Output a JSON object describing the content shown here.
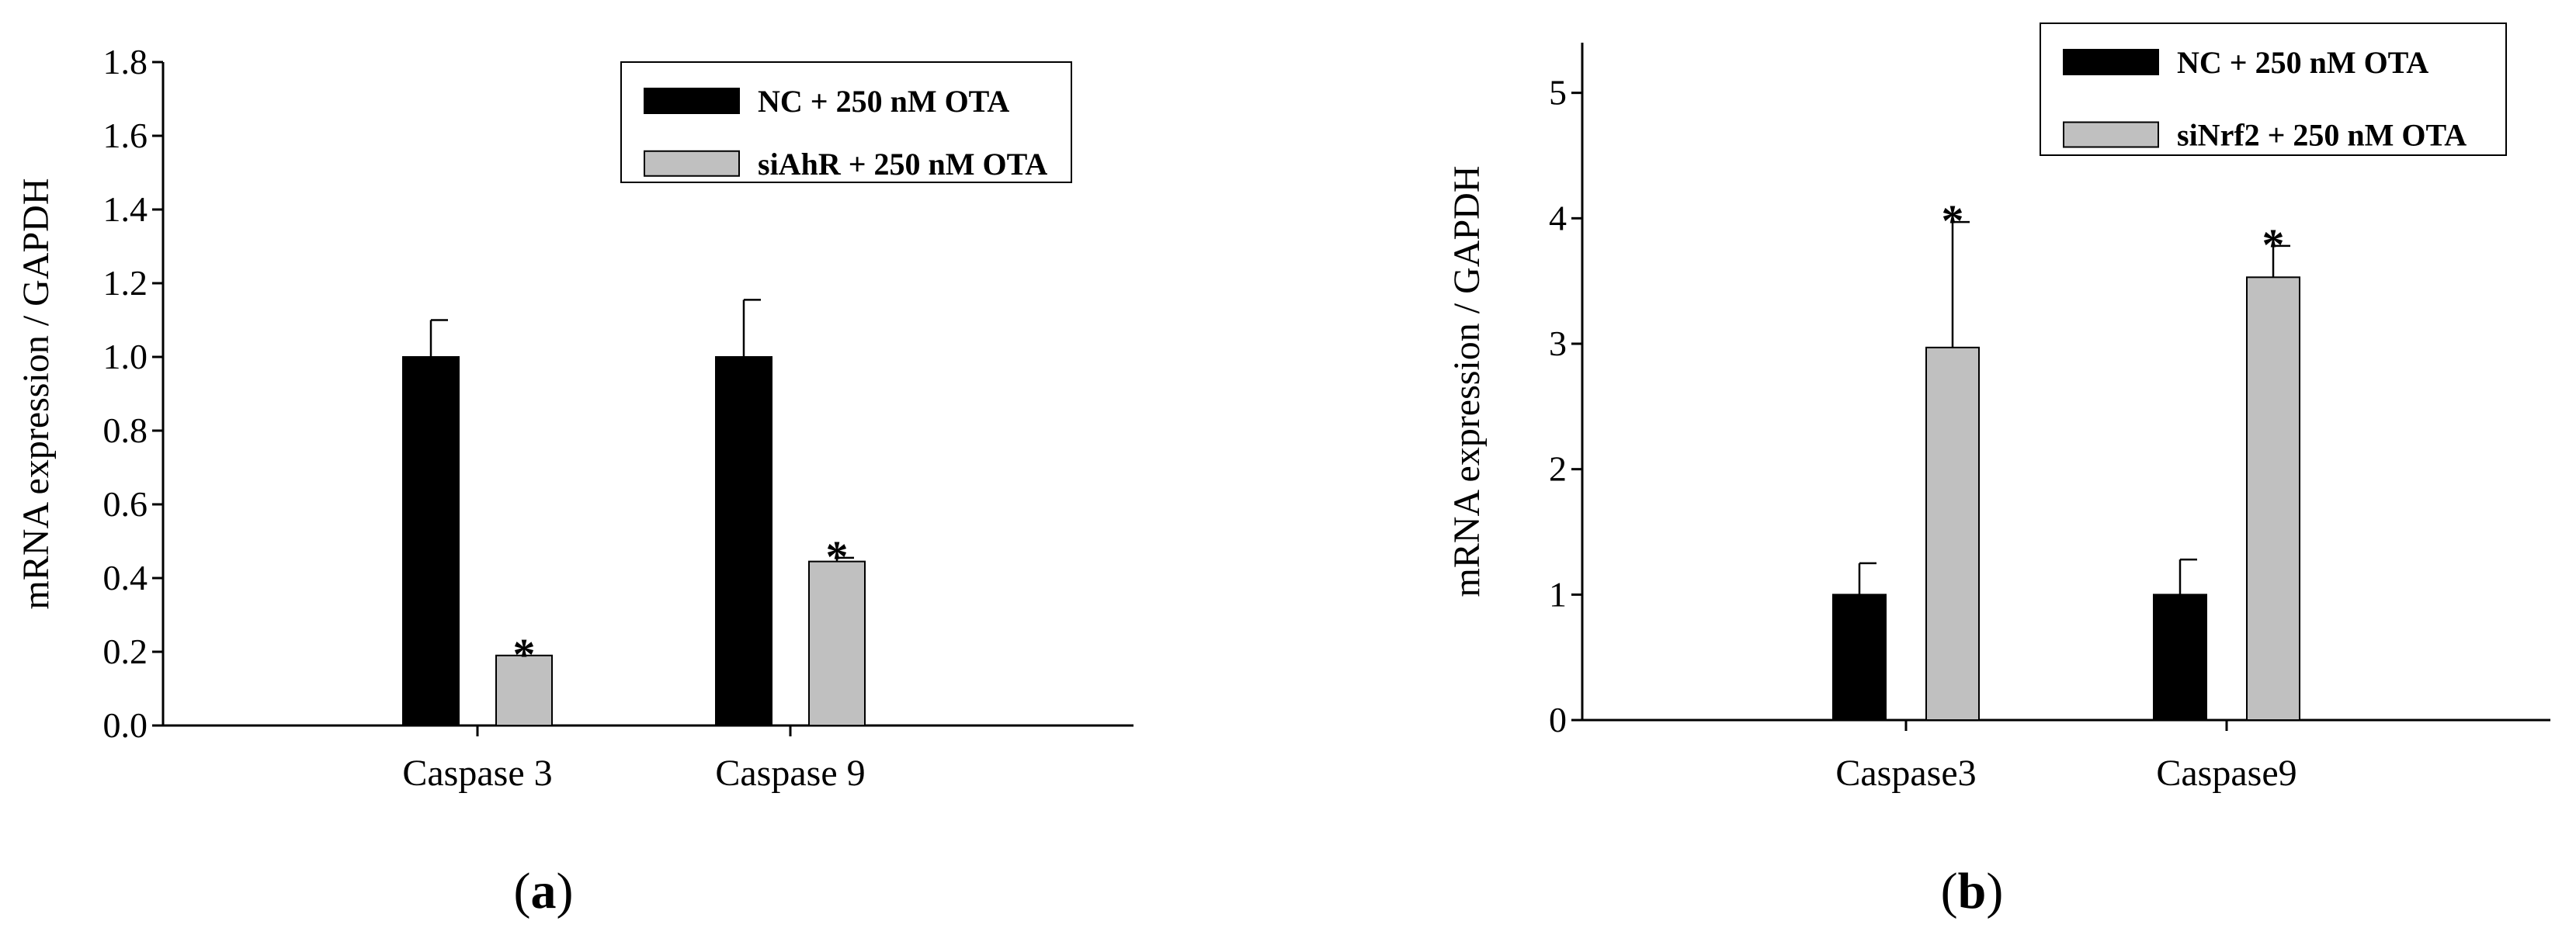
{
  "colors": {
    "series_1": "#000000",
    "series_2": "#c0c0c0",
    "axis": "#000000",
    "background": "#ffffff"
  },
  "chart_data": [
    {
      "type": "bar",
      "panel_label": {
        "open": "(",
        "letter": "a",
        "close": ")"
      },
      "ylabel": "mRNA expression / GAPDH",
      "xlabel": "",
      "categories": [
        "Caspase 3",
        "Caspase 9"
      ],
      "ylim": [
        0,
        1.8
      ],
      "yticks": [
        0.0,
        0.2,
        0.4,
        0.6,
        0.8,
        1.0,
        1.2,
        1.4,
        1.6,
        1.8
      ],
      "ytick_labels": [
        "0.0",
        "0.2",
        "0.4",
        "0.6",
        "0.8",
        "1.0",
        "1.2",
        "1.4",
        "1.6",
        "1.8"
      ],
      "grid": false,
      "legend_position": "top-right",
      "series": [
        {
          "name": "NC + 250 nM OTA",
          "values": [
            1.0,
            1.0
          ],
          "errors": [
            0.1,
            0.155
          ],
          "significant": [
            false,
            false
          ]
        },
        {
          "name": "siAhR + 250 nM OTA",
          "values": [
            0.19,
            0.445
          ],
          "errors": [
            0.0,
            0.01
          ],
          "significant": [
            true,
            true
          ]
        }
      ],
      "significance_marker": "*"
    },
    {
      "type": "bar",
      "panel_label": {
        "open": "(",
        "letter": "b",
        "close": ")"
      },
      "ylabel": "mRNA expression / GAPDH",
      "xlabel": "",
      "categories": [
        "Caspase3",
        "Caspase9"
      ],
      "ylim": [
        0,
        5.4
      ],
      "yticks": [
        0,
        1,
        2,
        3,
        4,
        5
      ],
      "ytick_labels": [
        "0",
        "1",
        "2",
        "3",
        "4",
        "5"
      ],
      "grid": false,
      "legend_position": "top-right",
      "series": [
        {
          "name": "NC + 250 nM OTA",
          "values": [
            1.0,
            1.0
          ],
          "errors": [
            0.25,
            0.28
          ],
          "significant": [
            false,
            false
          ]
        },
        {
          "name": "siNrf2 + 250 nM OTA",
          "values": [
            2.97,
            3.53
          ],
          "errors": [
            1.0,
            0.25
          ],
          "significant": [
            true,
            true
          ]
        }
      ],
      "significance_marker": "*"
    }
  ]
}
